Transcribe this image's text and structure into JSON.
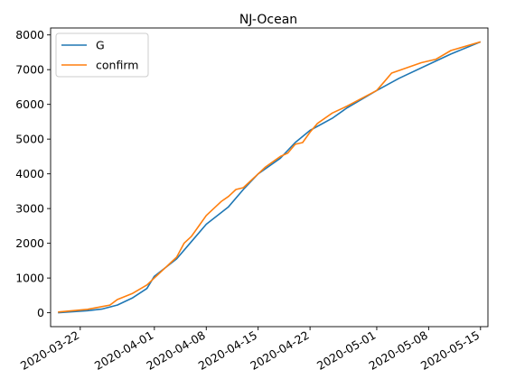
{
  "chart_data": {
    "type": "line",
    "title": "NJ-Ocean",
    "xlabel": "",
    "ylabel": "",
    "x_axis": {
      "type": "date",
      "range": [
        "2020-03-18",
        "2020-05-16"
      ],
      "ticks": [
        "2020-03-22",
        "2020-04-01",
        "2020-04-08",
        "2020-04-15",
        "2020-04-22",
        "2020-05-01",
        "2020-05-08",
        "2020-05-15"
      ]
    },
    "y_axis": {
      "range": [
        -400,
        8200
      ],
      "ticks": [
        0,
        1000,
        2000,
        3000,
        4000,
        5000,
        6000,
        7000,
        8000
      ]
    },
    "grid": false,
    "legend": "top-left",
    "series": [
      {
        "name": "G",
        "color": "#1f77b4",
        "points": [
          [
            "2020-03-19",
            0
          ],
          [
            "2020-03-21",
            30
          ],
          [
            "2020-03-23",
            60
          ],
          [
            "2020-03-25",
            110
          ],
          [
            "2020-03-27",
            220
          ],
          [
            "2020-03-29",
            420
          ],
          [
            "2020-03-31",
            700
          ],
          [
            "2020-04-01",
            1050
          ],
          [
            "2020-04-04",
            1550
          ],
          [
            "2020-04-06",
            2050
          ],
          [
            "2020-04-08",
            2550
          ],
          [
            "2020-04-11",
            3050
          ],
          [
            "2020-04-13",
            3550
          ],
          [
            "2020-04-15",
            4000
          ],
          [
            "2020-04-18",
            4450
          ],
          [
            "2020-04-20",
            4900
          ],
          [
            "2020-04-22",
            5250
          ],
          [
            "2020-04-25",
            5600
          ],
          [
            "2020-04-27",
            5900
          ],
          [
            "2020-05-01",
            6400
          ],
          [
            "2020-05-04",
            6750
          ],
          [
            "2020-05-08",
            7150
          ],
          [
            "2020-05-11",
            7450
          ],
          [
            "2020-05-15",
            7800
          ]
        ]
      },
      {
        "name": "confirm",
        "color": "#ff7f0e",
        "points": [
          [
            "2020-03-19",
            20
          ],
          [
            "2020-03-21",
            60
          ],
          [
            "2020-03-23",
            100
          ],
          [
            "2020-03-25",
            180
          ],
          [
            "2020-03-26",
            220
          ],
          [
            "2020-03-27",
            380
          ],
          [
            "2020-03-29",
            550
          ],
          [
            "2020-03-31",
            800
          ],
          [
            "2020-04-01",
            1000
          ],
          [
            "2020-04-04",
            1600
          ],
          [
            "2020-04-05",
            2000
          ],
          [
            "2020-04-06",
            2200
          ],
          [
            "2020-04-07",
            2500
          ],
          [
            "2020-04-08",
            2800
          ],
          [
            "2020-04-10",
            3200
          ],
          [
            "2020-04-11",
            3350
          ],
          [
            "2020-04-12",
            3550
          ],
          [
            "2020-04-13",
            3600
          ],
          [
            "2020-04-15",
            4000
          ],
          [
            "2020-04-16",
            4200
          ],
          [
            "2020-04-18",
            4500
          ],
          [
            "2020-04-19",
            4600
          ],
          [
            "2020-04-20",
            4850
          ],
          [
            "2020-04-21",
            4900
          ],
          [
            "2020-04-22",
            5200
          ],
          [
            "2020-04-23",
            5450
          ],
          [
            "2020-04-25",
            5750
          ],
          [
            "2020-04-27",
            5950
          ],
          [
            "2020-05-01",
            6400
          ],
          [
            "2020-05-02",
            6650
          ],
          [
            "2020-05-03",
            6900
          ],
          [
            "2020-05-05",
            7050
          ],
          [
            "2020-05-07",
            7200
          ],
          [
            "2020-05-09",
            7300
          ],
          [
            "2020-05-11",
            7550
          ],
          [
            "2020-05-15",
            7800
          ]
        ]
      }
    ]
  }
}
